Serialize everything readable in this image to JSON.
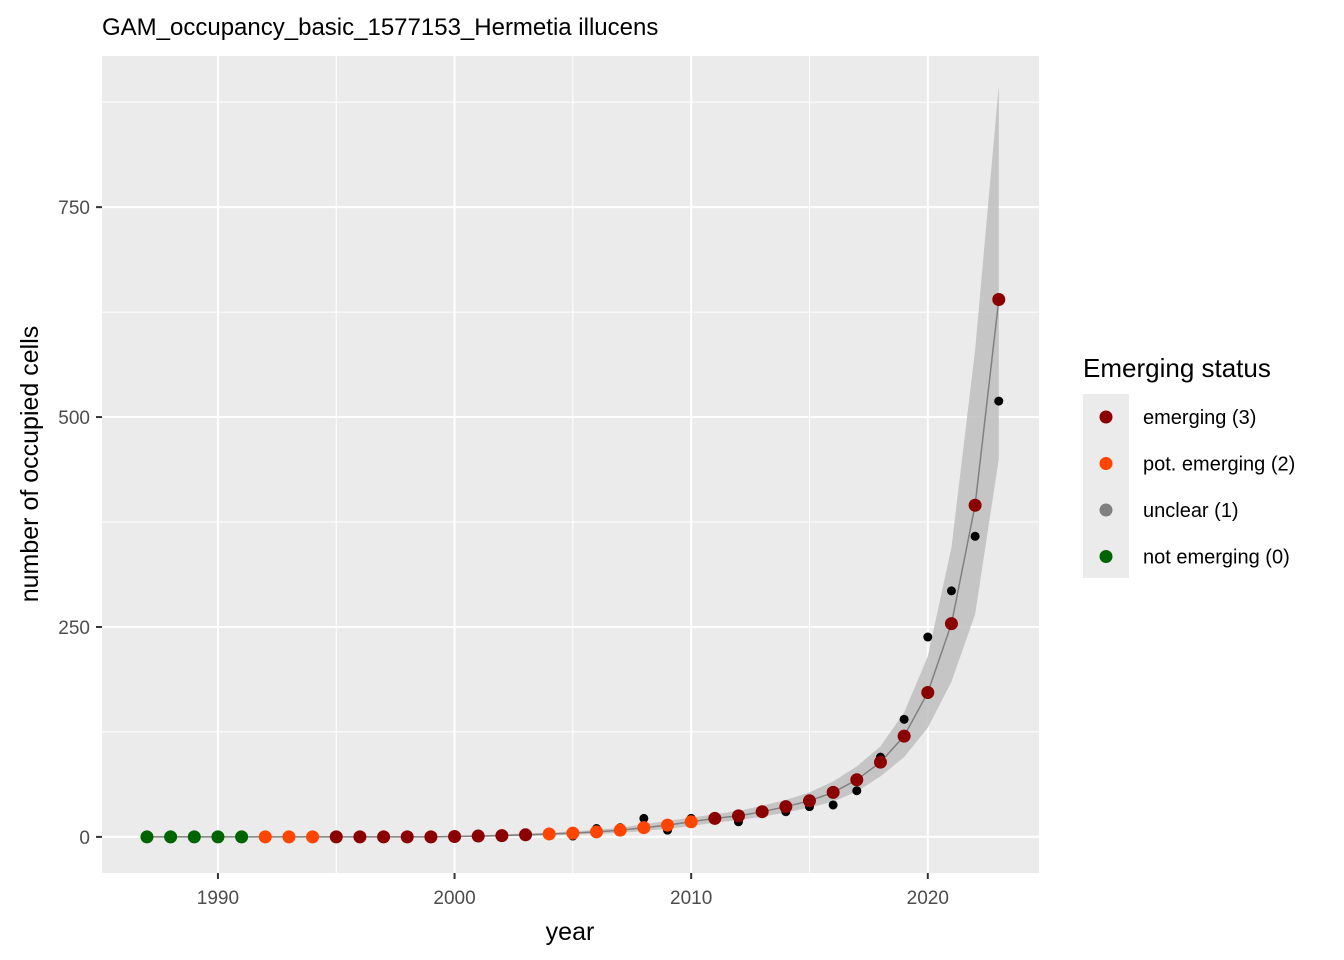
{
  "chart_data": {
    "type": "scatter",
    "title": "GAM_occupancy_basic_1577153_Hermetia illucens",
    "xlabel": "year",
    "ylabel": "number of occupied cells",
    "xlim": [
      1985.1,
      2024.7
    ],
    "ylim": [
      -43,
      930
    ],
    "x_ticks": [
      1990,
      2000,
      2010,
      2020
    ],
    "x_tick_labels": [
      "1990",
      "2000",
      "2010",
      "2020"
    ],
    "y_ticks": [
      0,
      250,
      500,
      750
    ],
    "y_tick_labels": [
      "0",
      "250",
      "500",
      "750"
    ],
    "grid": true,
    "legend_position": "right",
    "colors": {
      "panel": "#ebebeb",
      "grid": "#ffffff",
      "observed": "#000000",
      "fit_line": "#808080",
      "ribbon": "#bebebe"
    },
    "legend": {
      "title": "Emerging status",
      "items": [
        {
          "label": "emerging (3)",
          "color": "#8b0000"
        },
        {
          "label": "pot. emerging (2)",
          "color": "#ff4500"
        },
        {
          "label": "unclear (1)",
          "color": "#808080"
        },
        {
          "label": "not emerging (0)",
          "color": "#006400"
        }
      ]
    },
    "observed": {
      "x": [
        1987,
        1988,
        1989,
        1990,
        1991,
        1992,
        1993,
        1994,
        1995,
        1996,
        1997,
        1998,
        1999,
        2000,
        2001,
        2002,
        2003,
        2004,
        2005,
        2006,
        2007,
        2008,
        2009,
        2010,
        2011,
        2012,
        2013,
        2014,
        2015,
        2016,
        2017,
        2018,
        2019,
        2020,
        2021,
        2022,
        2023
      ],
      "y": [
        0,
        0,
        0,
        0,
        0,
        0,
        0,
        0,
        0,
        0,
        0,
        0,
        0,
        0,
        1,
        1,
        2,
        3,
        1,
        10,
        11,
        22,
        8,
        22,
        24,
        18,
        28,
        30,
        36,
        38,
        55,
        95,
        140,
        238,
        293,
        358,
        519
      ]
    },
    "fitted": {
      "x": [
        1987,
        1988,
        1989,
        1990,
        1991,
        1992,
        1993,
        1994,
        1995,
        1996,
        1997,
        1998,
        1999,
        2000,
        2001,
        2002,
        2003,
        2004,
        2005,
        2006,
        2007,
        2008,
        2009,
        2010,
        2011,
        2012,
        2013,
        2014,
        2015,
        2016,
        2017,
        2018,
        2019,
        2020,
        2021,
        2022,
        2023
      ],
      "y": [
        0,
        0,
        0,
        0,
        0,
        0,
        0,
        0,
        0,
        0,
        0,
        0,
        0,
        0.5,
        1,
        1.5,
        2.5,
        3.5,
        4.5,
        6,
        8,
        11,
        14,
        18,
        22,
        25,
        30,
        36,
        43,
        53,
        68,
        89,
        120,
        172,
        254,
        395,
        640
      ],
      "status": [
        0,
        0,
        0,
        0,
        0,
        2,
        2,
        2,
        3,
        3,
        3,
        3,
        3,
        3,
        3,
        3,
        3,
        2,
        2,
        2,
        2,
        2,
        2,
        2,
        3,
        3,
        3,
        3,
        3,
        3,
        3,
        3,
        3,
        3,
        3,
        3,
        3
      ],
      "lower": [
        0,
        0,
        0,
        0,
        0,
        0,
        0,
        0,
        0,
        0,
        0,
        0,
        0,
        0,
        0,
        0.5,
        1,
        2,
        2.5,
        3.5,
        5,
        7,
        9.5,
        13,
        17,
        20,
        24,
        29,
        35,
        42,
        54,
        72,
        95,
        130,
        185,
        265,
        450
      ],
      "upper": [
        1,
        1,
        1,
        1,
        1,
        1,
        1,
        1,
        1,
        1,
        1,
        1,
        1,
        1.5,
        2,
        3,
        4,
        5,
        6.5,
        8.5,
        11,
        15,
        19,
        23,
        27,
        31,
        37,
        44,
        53,
        66,
        84,
        108,
        148,
        215,
        345,
        580,
        895
      ]
    }
  }
}
